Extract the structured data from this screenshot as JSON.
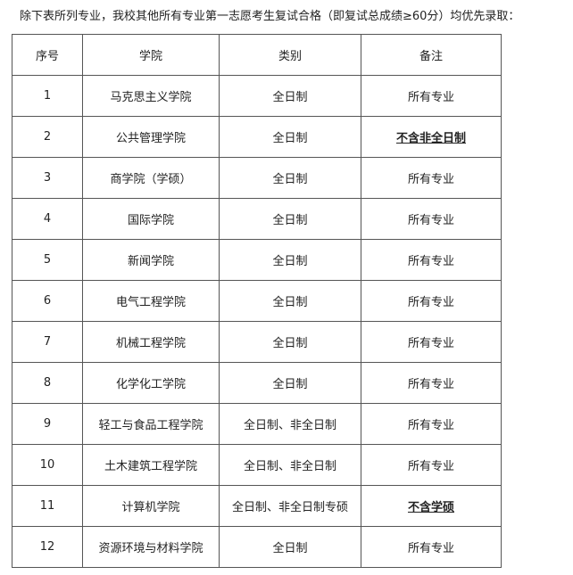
{
  "intro": "除下表所列专业，我校其他所有专业第一志愿考生复试合格（即复试总成绩≥60分）均优先录取：",
  "table": {
    "header": [
      "序号",
      "学院",
      "类别",
      "备注"
    ],
    "rows": [
      [
        1,
        "马克思主义学院",
        "全日制",
        "所有专业"
      ],
      [
        2,
        "公共管理学院",
        "全日制",
        "不含非全日制"
      ],
      [
        3,
        "商学院（学硕）",
        "全日制",
        "所有专业"
      ],
      [
        4,
        "国际学院",
        "全日制",
        "所有专业"
      ],
      [
        5,
        "新闻学院",
        "全日制",
        "所有专业"
      ],
      [
        6,
        "电气工程学院",
        "全日制",
        "所有专业"
      ],
      [
        7,
        "机械工程学院",
        "全日制",
        "所有专业"
      ],
      [
        8,
        "化学化工学院",
        "全日制",
        "所有专业"
      ],
      [
        9,
        "轻工与食品工程学院",
        "全日制、非全日制",
        "所有专业"
      ],
      [
        10,
        "土木建筑工程学院",
        "全日制、非全日制",
        "所有专业"
      ],
      [
        11,
        "计算机学院",
        "全日制、非全日制专硕",
        "不含学硕"
      ],
      [
        12,
        "资源环境与材料学院",
        "全日制",
        "所有专业"
      ]
    ]
  }
}
